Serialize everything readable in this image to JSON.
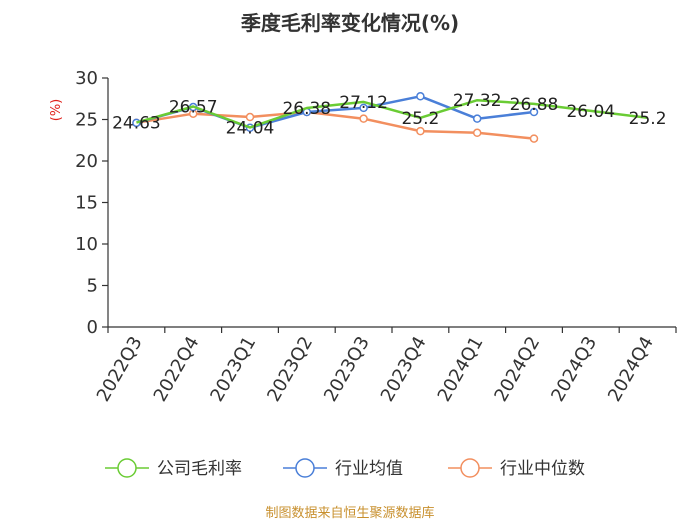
{
  "chart_data": {
    "type": "line",
    "title": "季度毛利率变化情况(%)",
    "ylabel": "(%)",
    "xlabel": "",
    "ylim": [
      0,
      30
    ],
    "yticks": [
      0,
      5,
      10,
      15,
      20,
      25,
      30
    ],
    "categories": [
      "2022Q3",
      "2022Q4",
      "2023Q1",
      "2023Q2",
      "2023Q3",
      "2023Q4",
      "2024Q1",
      "2024Q2",
      "2024Q3",
      "2024Q4"
    ],
    "series": [
      {
        "name": "公司毛利率",
        "color": "#6acc34",
        "values": [
          24.63,
          26.57,
          24.04,
          26.38,
          27.12,
          25.2,
          27.32,
          26.88,
          26.04,
          25.2
        ],
        "labels": [
          "24.63",
          "26.57",
          "24.04",
          "26.38",
          "27.12",
          "25.2",
          "27.32",
          "26.88",
          "26.04",
          "25.2"
        ],
        "markers": false
      },
      {
        "name": "行业均值",
        "color": "#4a7fd8",
        "values": [
          24.6,
          26.5,
          24.0,
          25.9,
          26.4,
          27.8,
          25.1,
          25.9,
          null,
          null
        ],
        "markers": true
      },
      {
        "name": "行业中位数",
        "color": "#f28f5f",
        "values": [
          24.6,
          25.7,
          25.3,
          25.9,
          25.1,
          23.6,
          23.4,
          22.7,
          null,
          null
        ],
        "markers": true
      }
    ],
    "grid": false,
    "legend_position": "bottom"
  },
  "source": "制图数据来自恒生聚源数据库"
}
